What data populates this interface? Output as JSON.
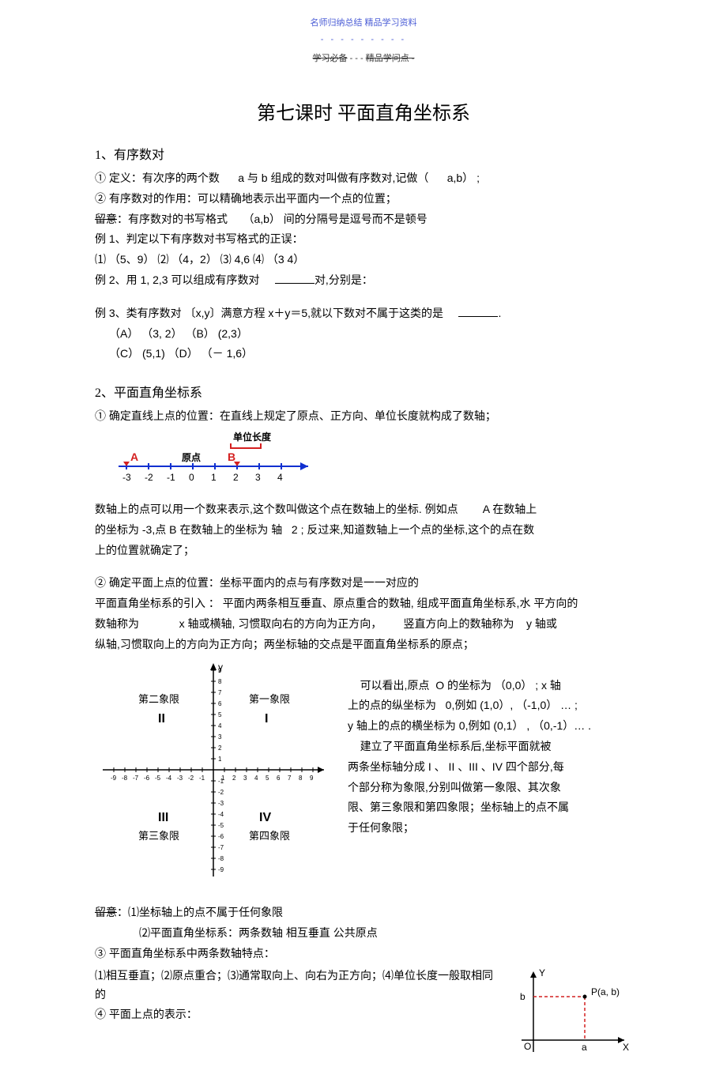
{
  "header": {
    "top1": "名师归纳总结    精品学习资料",
    "dashes": "- - - - - - - - -",
    "strike1": "学习必备",
    "mid": " - - - ",
    "strike2": "精品学问点 -"
  },
  "title": "第七课时   平面直角坐标系",
  "s1": {
    "heading": "1、有序数对",
    "l1a": "① 定义：有次序的两个数",
    "l1b": "a 与 b 组成的数对叫做有序数对,记做（",
    "l1c": "a,b）  ;",
    "l2": "② 有序数对的作用：可以精确地表示出平面内一个点的位置；",
    "l3a": "留意",
    "l3b": "：有序数对的书写格式",
    "l3c": "（a,b） 间的分隔号是逗号而不是顿号",
    "ex1": "例 1、判定以下有序数对书写格式的正误：",
    "opts": "⑴ （5、9）             ⑵ （4，2）            ⑶ 4,6             ⑷ （3      4）",
    "ex2a": "例 2、用 1, 2,3 可以组成有序数对",
    "ex2b": "对,分别是：",
    "ex3a": "例 3、类有序数对   〔x,y〕满意方程 x＋y＝5,就以下数对不属于这类的是",
    "ex3b": ".",
    "optA": "（A）  （3, 2）           （B）    (2,3）",
    "optC": "（C）   (5,1)               （D）   （－ 1,6）"
  },
  "s2": {
    "heading": "2、平面直角坐标系",
    "l1": "① 确定直线上点的位置：在直线上规定了原点、正方向、单位长度就构成了数轴；",
    "fig1": {
      "unit_label": "单位长度",
      "origin_label": "原点",
      "A": "A",
      "B": "B",
      "ticks": [
        "-3",
        "-2",
        "-1",
        "0",
        "1",
        "2",
        "3",
        "4"
      ],
      "colors": {
        "red": "#d42020",
        "blue": "#1030d0",
        "black": "#000000"
      }
    },
    "p2a": "数轴上的点可以用一个数来表示,这个数叫做这个点在数轴上的坐标.  例如点",
    "p2b": "A 在数轴上",
    "p2c": "的坐标为 -3,点 B 在数轴上的坐标为 轴",
    "p2d": "2 ; 反过来,知道数轴上一个点的坐标,这个的点在数",
    "p2e": "上的位置就确定了；",
    "l3": "② 确定平面上点的位置：坐标平面内的点与有序数对是一一对应的",
    "p3a": "平面直角坐标系的引入 ：    平面内两条相互垂直、原点重合的数轴, 组成平面直角坐标系,水 平方向的",
    "p3b": "数轴称为",
    "p3c": "x 轴或横轴, 习惯取向右的方向为正方向，",
    "p3d": "竖直方向上的数轴称为",
    "p3e": "y 轴或",
    "p3f": "纵轴,习惯取向上的方向为正方向；两坐标轴的交点是平面直角坐标系的原点；",
    "fig2": {
      "q1": "第一象限",
      "q2": "第二象限",
      "q3": "第三象限",
      "q4": "第四象限",
      "r1": "I",
      "r2": "II",
      "r3": "III",
      "r4": "IV",
      "x_ticks": [
        "-9",
        "-8",
        "-7",
        "-6",
        "-5",
        "-4",
        "-3",
        "-2",
        "-1",
        "1",
        "2",
        "3",
        "4",
        "5",
        "6",
        "7",
        "8",
        "9"
      ],
      "y_ticks_pos": [
        "1",
        "2",
        "3",
        "4",
        "5",
        "6",
        "7",
        "8",
        "9"
      ],
      "y_ticks_neg": [
        "-1",
        "-2",
        "-3",
        "-4",
        "-5",
        "-6",
        "-7",
        "-8",
        "-9"
      ],
      "ylab": "y"
    },
    "right": {
      "r1a": "可以看出,原点",
      "r1b": "O 的坐标为 （0,0）  ; x 轴",
      "r2a": "上的点的纵坐标为",
      "r2b": "0,例如   (1,0）, （-1,0） …  ;",
      "r3": "y 轴上的点的横坐标为  0,例如  (0,1） , （0,-1）… .",
      "r4": "建立了平面直角坐标系后,坐标平面就被",
      "r5": "两条坐标轴分成 I 、 II 、III 、IV 四个部分,每",
      "r6": "个部分称为象限,分别叫做第一象限、其次象",
      "r7": "限、第三象限和第四象限；坐标轴上的点不属",
      "r8": "于任何象限；"
    },
    "n1a": "留意",
    "n1b": "：⑴坐标轴上的点不属于任何象限",
    "n2": "⑵平面直角坐标系：两条数轴        相互垂直      公共原点",
    "l4": "③ 平面直角坐标系中两条数轴特点：",
    "l5": "⑴相互垂直；⑵原点重合；⑶通常取向上、向右为正方向；⑷单位长度一般取相同的",
    "l6": "④ 平面上点的表示：",
    "fig3": {
      "Y": "Y",
      "X": "X",
      "O": "O",
      "a": "a",
      "b": "b",
      "P": "P(a, b)",
      "red": "#d42020"
    }
  }
}
